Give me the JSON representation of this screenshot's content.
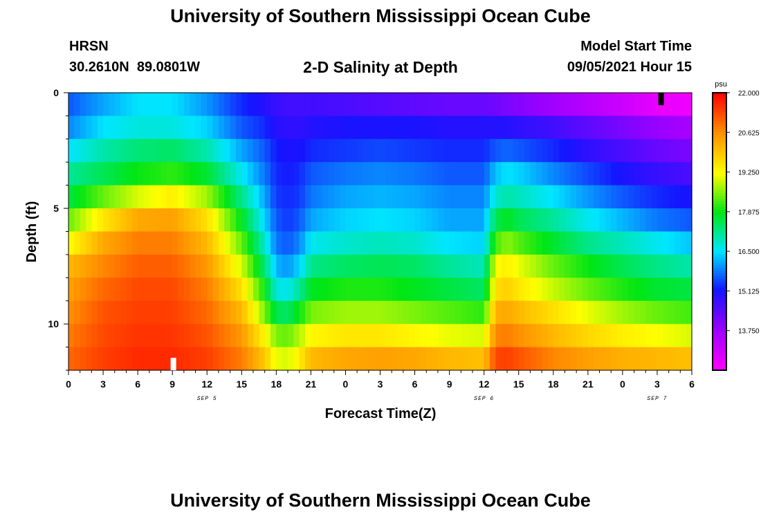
{
  "header": {
    "title_top": "University of Southern Mississippi Ocean Cube",
    "title_bottom": "University of Southern Mississippi Ocean Cube",
    "station": "HRSN",
    "coords": "30.2610N  89.0801W",
    "plot_title": "2-D Salinity at Depth",
    "model_start_label": "Model Start Time",
    "model_start_value": "09/05/2021 Hour 15"
  },
  "chart_data": {
    "type": "heatmap",
    "title": "2-D Salinity at Depth",
    "xlabel": "Forecast Time(Z)",
    "ylabel": "Depth (ft)",
    "x_range_hours": [
      0,
      54
    ],
    "y_range_ft": [
      0,
      12
    ],
    "x_ticks": [
      "0",
      "3",
      "6",
      "9",
      "12",
      "15",
      "18",
      "21",
      "0",
      "3",
      "6",
      "9",
      "12",
      "15",
      "18",
      "21",
      "0",
      "3",
      "6"
    ],
    "y_ticks": [
      "0",
      "5",
      "10"
    ],
    "date_labels": [
      {
        "text": "SEP 5",
        "hour": 12
      },
      {
        "text": "SEP 6",
        "hour": 36
      },
      {
        "text": "SEP 7",
        "hour": 51
      }
    ],
    "colorbar": {
      "unit": "psu",
      "min": 12.375,
      "max": 22.0,
      "tick_labels": [
        "22.000",
        "20.625",
        "19.250",
        "17.875",
        "16.500",
        "15.125",
        "13.750"
      ],
      "tick_values": [
        22.0,
        20.625,
        19.25,
        17.875,
        16.5,
        15.125,
        13.75
      ]
    },
    "layer_depths_ft": [
      0.5,
      1.5,
      2.5,
      3.5,
      4.5,
      5.5,
      6.5,
      7.5,
      8.5,
      9.5,
      10.5,
      11.5
    ],
    "time_hours": [
      0,
      3,
      6,
      9,
      12,
      15,
      17,
      18,
      19,
      20,
      21,
      24,
      27,
      30,
      33,
      36,
      37,
      38,
      39,
      42,
      45,
      48,
      51,
      54
    ],
    "salinity": [
      [
        15.6,
        16.1,
        16.5,
        16.5,
        16.0,
        15.3,
        15.0,
        14.8,
        14.7,
        14.7,
        14.7,
        14.6,
        14.5,
        14.4,
        14.3,
        14.3,
        14.2,
        14.1,
        14.0,
        13.7,
        13.4,
        13.1,
        12.7,
        12.6
      ],
      [
        15.9,
        16.5,
        16.7,
        16.7,
        16.4,
        15.6,
        15.3,
        15.0,
        14.9,
        14.9,
        15.0,
        15.1,
        15.1,
        15.1,
        15.0,
        15.0,
        15.0,
        15.0,
        14.9,
        14.7,
        14.4,
        14.1,
        13.8,
        13.6
      ],
      [
        16.5,
        17.0,
        17.3,
        17.4,
        17.0,
        16.1,
        15.6,
        15.2,
        15.1,
        15.1,
        15.3,
        15.4,
        15.5,
        15.4,
        15.3,
        15.3,
        15.6,
        15.7,
        15.6,
        15.3,
        14.9,
        14.6,
        14.3,
        14.1
      ],
      [
        17.1,
        17.5,
        17.9,
        18.1,
        17.7,
        16.6,
        15.8,
        15.3,
        15.2,
        15.3,
        15.6,
        15.8,
        15.9,
        15.8,
        15.6,
        15.6,
        16.3,
        16.5,
        16.4,
        15.9,
        15.5,
        15.1,
        14.8,
        14.6
      ],
      [
        17.6,
        18.4,
        19.0,
        19.4,
        18.7,
        17.2,
        16.1,
        15.4,
        15.3,
        15.4,
        15.8,
        16.1,
        16.2,
        16.1,
        15.9,
        15.9,
        16.8,
        17.0,
        16.9,
        16.5,
        16.0,
        15.6,
        15.3,
        15.1
      ],
      [
        18.4,
        19.5,
        20.3,
        20.4,
        19.6,
        17.8,
        16.4,
        15.6,
        15.4,
        15.6,
        16.1,
        16.4,
        16.5,
        16.4,
        16.1,
        16.1,
        17.5,
        17.8,
        17.5,
        17.1,
        16.6,
        16.2,
        15.8,
        15.6
      ],
      [
        19.2,
        20.3,
        20.8,
        20.8,
        20.1,
        18.4,
        16.8,
        15.8,
        15.6,
        15.9,
        16.6,
        16.8,
        16.9,
        16.8,
        16.5,
        16.4,
        18.2,
        18.6,
        18.3,
        17.7,
        17.2,
        16.9,
        16.6,
        16.3
      ],
      [
        20.1,
        20.7,
        21.1,
        21.1,
        20.5,
        19.0,
        17.3,
        16.2,
        16.0,
        16.4,
        17.2,
        17.4,
        17.5,
        17.4,
        17.1,
        16.9,
        19.2,
        19.4,
        19.1,
        18.4,
        17.9,
        17.5,
        17.2,
        17.0
      ],
      [
        20.4,
        21.0,
        21.3,
        21.3,
        20.8,
        19.6,
        17.9,
        16.7,
        16.6,
        17.1,
        17.8,
        18.0,
        18.0,
        17.8,
        17.6,
        17.4,
        19.6,
        19.8,
        19.5,
        18.9,
        18.4,
        18.0,
        17.7,
        17.6
      ],
      [
        20.6,
        21.2,
        21.4,
        21.4,
        21.0,
        20.1,
        18.5,
        17.5,
        17.4,
        17.9,
        18.5,
        18.7,
        18.7,
        18.5,
        18.3,
        18.1,
        20.2,
        20.3,
        20.1,
        19.6,
        19.1,
        18.7,
        18.4,
        18.2
      ],
      [
        20.8,
        21.3,
        21.5,
        21.5,
        21.2,
        20.5,
        19.3,
        18.5,
        18.4,
        18.8,
        19.3,
        19.5,
        19.5,
        19.3,
        19.1,
        19.0,
        20.7,
        20.8,
        20.6,
        20.1,
        19.7,
        19.4,
        19.2,
        19.0
      ],
      [
        21.0,
        21.4,
        21.6,
        21.6,
        21.4,
        20.8,
        19.9,
        19.1,
        19.0,
        19.4,
        20.1,
        20.3,
        20.4,
        20.3,
        20.1,
        20.0,
        21.3,
        21.4,
        21.2,
        20.7,
        20.4,
        20.2,
        20.1,
        20.0
      ]
    ]
  }
}
